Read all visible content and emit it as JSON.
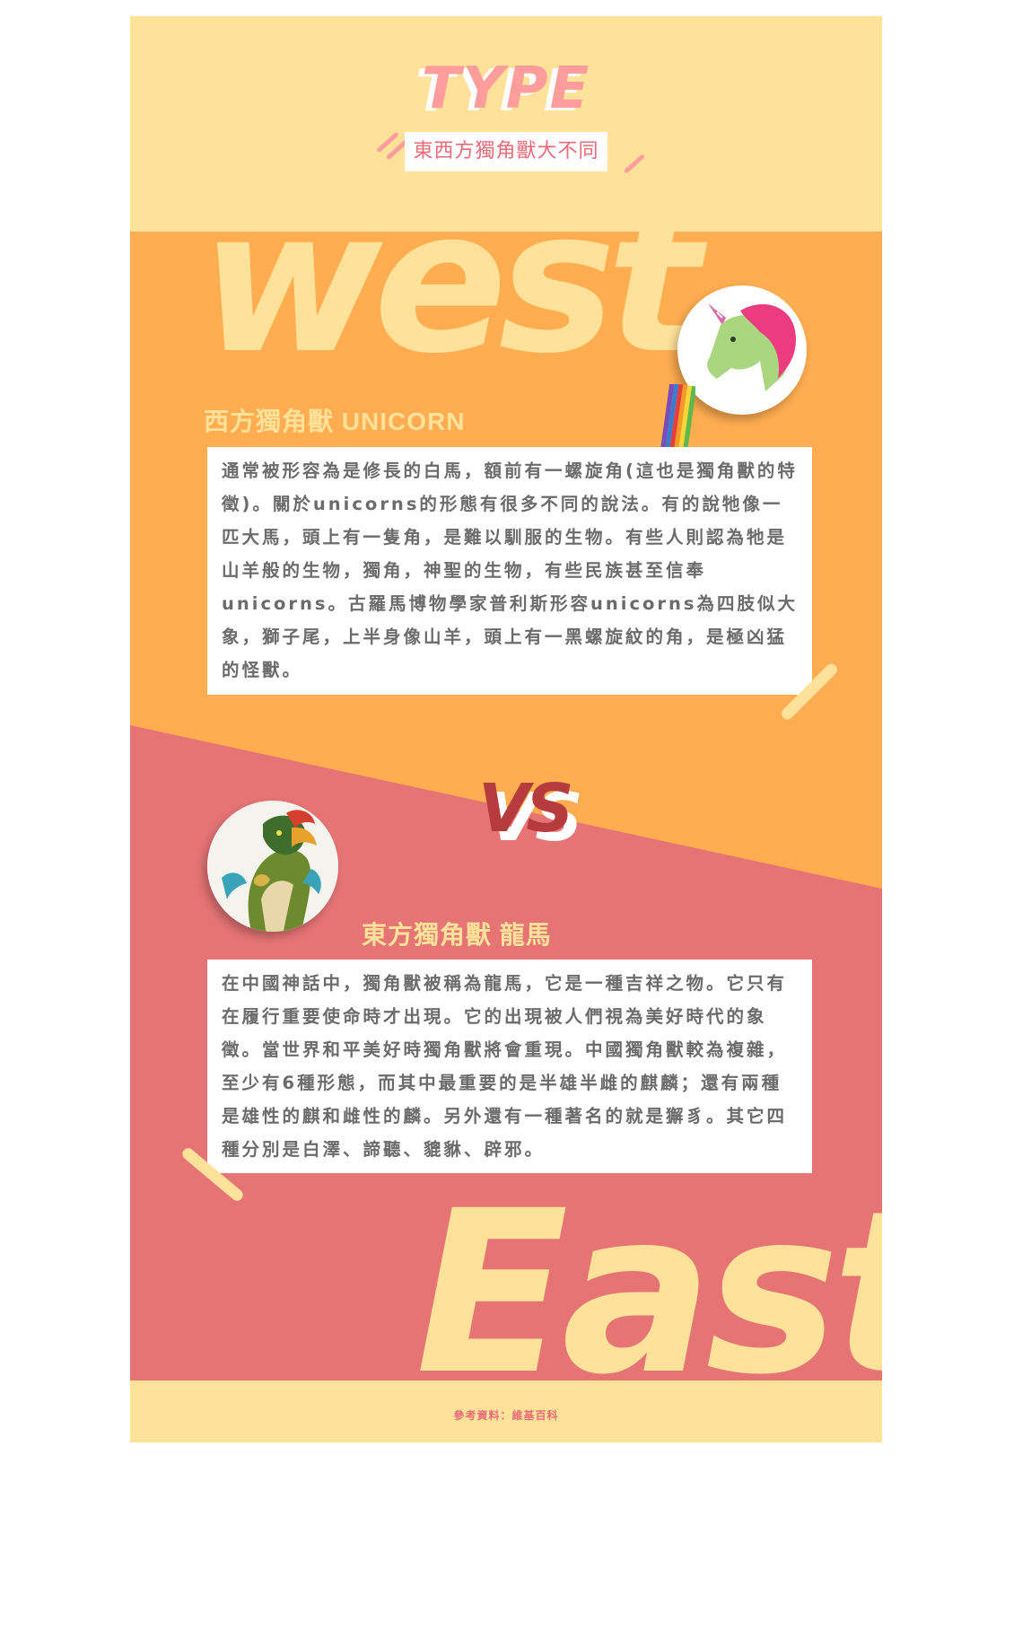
{
  "header": {
    "title": "TYPE",
    "subtitle": "東西方獨角獸大不同"
  },
  "west": {
    "big_word": "west",
    "heading": "西方獨角獸 UNICORN",
    "body": "通常被形容為是修長的白馬，額前有一螺旋角(這也是獨角獸的特徵)。關於unicorns的形態有很多不同的說法。有的說牠像一匹大馬，頭上有一隻角，是難以馴服的生物。有些人則認為牠是山羊般的生物，獨角，神聖的生物，有些民族甚至信奉unicorns。古羅馬博物學家普利斯形容unicorns為四肢似大象，獅子尾，上半身像山羊，頭上有一黑螺旋紋的角，是極凶猛的怪獸。"
  },
  "vs": "VS",
  "east": {
    "big_word": "East",
    "heading": "東方獨角獸 龍馬",
    "body": "在中國神話中，獨角獸被稱為龍馬，它是一種吉祥之物。它只有在履行重要使命時才出現。它的出現被人們視為美好時代的象徵。當世界和平美好時獨角獸將會重現。中國獨角獸較為複雜，至少有6種形態，而其中最重要的是半雄半雌的麒麟；還有兩種是雄性的麒和雌性的麟。另外還有一種著名的就是獬豸。其它四種分別是白澤、諦聽、貔貅、辟邪。"
  },
  "footer": {
    "source": "參考資料：維基百科"
  },
  "colors": {
    "cream": "#FFE29A",
    "orange": "#FFAD50",
    "pink": "#E67475",
    "accent_pink": "#FF9D9D",
    "dark_red": "#B53B3D"
  },
  "icons": {
    "west_avatar": "unicorn-head-rainbow-icon",
    "east_avatar": "dragon-horse-icon"
  }
}
